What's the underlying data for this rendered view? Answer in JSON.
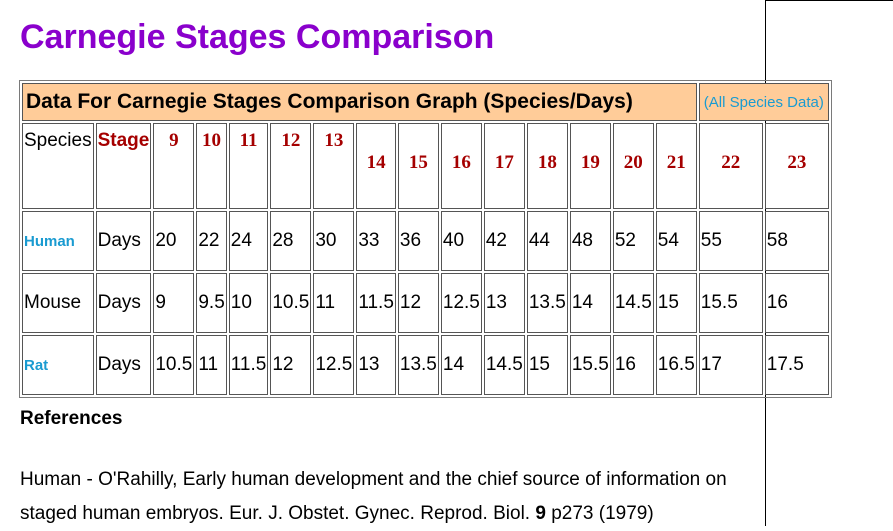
{
  "title": "Carnegie Stages Comparison",
  "table": {
    "header": "Data For Carnegie Stages Comparison Graph (Species/Days)",
    "all_species_link": "(All Species Data)",
    "species_label": "Species",
    "stage_label": "Stage",
    "stages": [
      "9",
      "10",
      "11",
      "12",
      "13",
      "14",
      "15",
      "16",
      "17",
      "18",
      "19",
      "20",
      "21",
      "22",
      "23"
    ],
    "rows": [
      {
        "species": "Human",
        "is_link": true,
        "unit": "Days",
        "values": [
          "20",
          "22",
          "24",
          "28",
          "30",
          "33",
          "36",
          "40",
          "42",
          "44",
          "48",
          "52",
          "54",
          "55",
          "58"
        ]
      },
      {
        "species": "Mouse",
        "is_link": false,
        "unit": "Days",
        "values": [
          "9",
          "9.5",
          "10",
          "10.5",
          "11",
          "11.5",
          "12",
          "12.5",
          "13",
          "13.5",
          "14",
          "14.5",
          "15",
          "15.5",
          "16"
        ]
      },
      {
        "species": "Rat",
        "is_link": true,
        "unit": "Days",
        "values": [
          "10.5",
          "11",
          "11.5",
          "12",
          "12.5",
          "13",
          "13.5",
          "14",
          "14.5",
          "15",
          "15.5",
          "16",
          "16.5",
          "17",
          "17.5"
        ]
      }
    ]
  },
  "references": {
    "heading": "References",
    "citation_prefix": "Human - O'Rahilly, Early human development and the chief source of information on staged human embryos. Eur. J. Obstet. Gynec. Reprod. Biol. ",
    "citation_volume": "9",
    "citation_suffix": " p273 (1979)"
  },
  "colors": {
    "title": "#8a00cc",
    "header_bg": "#ffcc99",
    "link": "#1a9bd1",
    "stage": "#a50000"
  }
}
